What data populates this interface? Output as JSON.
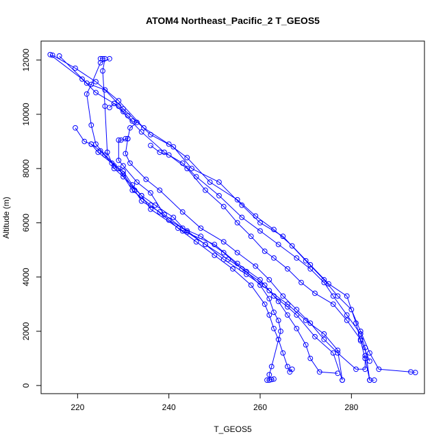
{
  "chart_data": {
    "type": "scatter",
    "title": "ATOM4 Northeast_Pacific_2 T_GEOS5",
    "xlabel": "T_GEOS5",
    "ylabel": "Altitude (m)",
    "xlim": [
      212,
      296
    ],
    "ylim": [
      -300,
      12700
    ],
    "xticks": [
      220,
      240,
      260,
      280
    ],
    "yticks": [
      0,
      2000,
      4000,
      6000,
      8000,
      10000,
      12000
    ],
    "grid": false,
    "legend": "none",
    "color": "#0000ff",
    "series": [
      {
        "points": [
          [
            214,
            12200
          ],
          [
            221,
            11300
          ],
          [
            224,
            10800
          ],
          [
            228,
            10400
          ],
          [
            234,
            9350
          ],
          [
            239,
            8600
          ],
          [
            243,
            8200
          ],
          [
            246,
            7700
          ],
          [
            251,
            7000
          ],
          [
            256,
            6200
          ],
          [
            260,
            5700
          ],
          [
            264,
            5200
          ],
          [
            268,
            4700
          ],
          [
            271,
            4300
          ],
          [
            274,
            3800
          ],
          [
            276,
            3300
          ],
          [
            279,
            2600
          ],
          [
            282,
            1900
          ],
          [
            283,
            1400
          ],
          [
            284,
            200
          ],
          [
            285,
            200
          ]
        ]
      },
      {
        "points": [
          [
            216,
            12150
          ],
          [
            222,
            11150
          ],
          [
            226,
            10900
          ],
          [
            230,
            10200
          ],
          [
            236,
            9250
          ],
          [
            241,
            8800
          ],
          [
            245,
            8000
          ],
          [
            251,
            7500
          ],
          [
            256,
            6650
          ],
          [
            260,
            6000
          ],
          [
            265,
            5500
          ],
          [
            270,
            4600
          ],
          [
            274,
            3900
          ],
          [
            277,
            3300
          ],
          [
            280,
            2800
          ],
          [
            282,
            2000
          ],
          [
            284,
            1200
          ],
          [
            286,
            600
          ],
          [
            293,
            500
          ],
          [
            294,
            480
          ]
        ]
      },
      {
        "points": [
          [
            214.5,
            12180
          ],
          [
            219.5,
            11700
          ],
          [
            224,
            11200
          ],
          [
            229,
            10500
          ],
          [
            234.5,
            9500
          ],
          [
            240,
            8900
          ],
          [
            244,
            8400
          ],
          [
            249,
            7500
          ],
          [
            255,
            6850
          ],
          [
            259,
            6250
          ],
          [
            263,
            5750
          ],
          [
            267,
            5150
          ],
          [
            271,
            4450
          ],
          [
            275,
            3750
          ],
          [
            279,
            3300
          ],
          [
            281,
            2300
          ],
          [
            282,
            1650
          ],
          [
            283,
            1000
          ],
          [
            284,
            200
          ]
        ]
      },
      {
        "points": [
          [
            225,
            12050
          ],
          [
            225.5,
            12050
          ],
          [
            226,
            12050
          ],
          [
            225.5,
            11600
          ],
          [
            226,
            10300
          ],
          [
            226.5,
            8600
          ],
          [
            228,
            8000
          ],
          [
            230,
            7700
          ],
          [
            234,
            7000
          ],
          [
            236,
            6500
          ],
          [
            243,
            5700
          ],
          [
            250,
            5200
          ],
          [
            255,
            4500
          ],
          [
            260,
            3900
          ],
          [
            263,
            3300
          ],
          [
            266,
            2900
          ],
          [
            268,
            2600
          ],
          [
            272,
            1800
          ],
          [
            276,
            1200
          ],
          [
            278,
            200
          ]
        ]
      },
      {
        "points": [
          [
            227,
            12050
          ],
          [
            225,
            11900
          ],
          [
            223,
            11100
          ],
          [
            222,
            10750
          ],
          [
            223,
            9600
          ],
          [
            224,
            8900
          ],
          [
            226,
            8500
          ],
          [
            229,
            8000
          ],
          [
            232,
            7200
          ],
          [
            236,
            6650
          ],
          [
            240,
            6100
          ],
          [
            244,
            5700
          ],
          [
            248,
            5200
          ],
          [
            252,
            4650
          ],
          [
            257,
            4100
          ],
          [
            262,
            3500
          ],
          [
            266,
            3000
          ],
          [
            270,
            2400
          ],
          [
            274,
            1900
          ],
          [
            277,
            1300
          ],
          [
            278,
            200
          ]
        ]
      },
      {
        "points": [
          [
            227,
            10250
          ],
          [
            228,
            10400
          ],
          [
            229,
            10300
          ],
          [
            230,
            10100
          ],
          [
            231,
            9950
          ],
          [
            232,
            9750
          ],
          [
            233,
            9700
          ],
          [
            231.5,
            9500
          ],
          [
            231,
            9100
          ],
          [
            229.5,
            9050
          ],
          [
            229,
            9050
          ],
          [
            229,
            8300
          ],
          [
            230,
            8100
          ],
          [
            233,
            7500
          ],
          [
            236,
            7100
          ],
          [
            239,
            6300
          ],
          [
            243,
            5800
          ],
          [
            247,
            5500
          ],
          [
            252,
            4900
          ],
          [
            256,
            4300
          ],
          [
            261,
            3700
          ],
          [
            264,
            3100
          ],
          [
            266,
            2600
          ],
          [
            268,
            2100
          ],
          [
            270,
            1500
          ],
          [
            271,
            1000
          ],
          [
            273,
            500
          ],
          [
            277,
            450
          ]
        ]
      },
      {
        "points": [
          [
            219.5,
            9500
          ],
          [
            221.5,
            9000
          ],
          [
            223,
            8900
          ],
          [
            225,
            8650
          ],
          [
            228,
            8100
          ],
          [
            230,
            7800
          ],
          [
            232.5,
            7200
          ],
          [
            234,
            6800
          ],
          [
            238,
            6400
          ],
          [
            242,
            5800
          ],
          [
            246,
            5300
          ],
          [
            250,
            4800
          ],
          [
            254,
            4300
          ],
          [
            258,
            3700
          ],
          [
            261,
            3000
          ],
          [
            262,
            2600
          ],
          [
            263,
            2100
          ],
          [
            264,
            1700
          ],
          [
            265,
            1200
          ],
          [
            266,
            700
          ],
          [
            266.5,
            500
          ],
          [
            267,
            600
          ]
        ]
      },
      {
        "points": [
          [
            223,
            8900
          ],
          [
            224.5,
            8600
          ],
          [
            227.5,
            8200
          ],
          [
            230,
            7900
          ],
          [
            232,
            7400
          ],
          [
            234,
            7000
          ],
          [
            237,
            6650
          ],
          [
            241,
            6200
          ],
          [
            244,
            5650
          ],
          [
            248,
            5200
          ],
          [
            253,
            4650
          ],
          [
            257,
            4200
          ],
          [
            260,
            3700
          ],
          [
            262,
            3200
          ],
          [
            263,
            2700
          ],
          [
            264,
            2400
          ],
          [
            264.5,
            2000
          ],
          [
            262.5,
            700
          ],
          [
            262,
            400
          ],
          [
            262,
            200
          ],
          [
            261.5,
            200
          ],
          [
            262.5,
            220
          ],
          [
            263,
            240
          ]
        ]
      },
      {
        "points": [
          [
            230.5,
            9100
          ],
          [
            231,
            9100
          ],
          [
            230.5,
            8550
          ],
          [
            231.5,
            8200
          ],
          [
            235,
            7600
          ],
          [
            238,
            7200
          ],
          [
            243,
            6400
          ],
          [
            247,
            5800
          ],
          [
            252,
            5300
          ],
          [
            255,
            4900
          ],
          [
            259,
            4400
          ],
          [
            262,
            3900
          ],
          [
            265,
            3300
          ],
          [
            268,
            2800
          ],
          [
            271,
            2300
          ],
          [
            274,
            1700
          ],
          [
            277,
            1200
          ],
          [
            281,
            600
          ],
          [
            283,
            600
          ],
          [
            283,
            1100
          ]
        ]
      },
      {
        "points": [
          [
            236,
            8850
          ],
          [
            238,
            8600
          ],
          [
            240,
            8500
          ],
          [
            244,
            8000
          ],
          [
            248,
            7200
          ],
          [
            252,
            6600
          ],
          [
            255,
            6000
          ],
          [
            258,
            5500
          ],
          [
            261,
            4950
          ],
          [
            263,
            4700
          ],
          [
            266,
            4300
          ],
          [
            269,
            3800
          ],
          [
            272,
            3400
          ],
          [
            276,
            3000
          ],
          [
            279,
            2400
          ],
          [
            282,
            1700
          ],
          [
            284,
            900
          ]
        ]
      }
    ]
  }
}
